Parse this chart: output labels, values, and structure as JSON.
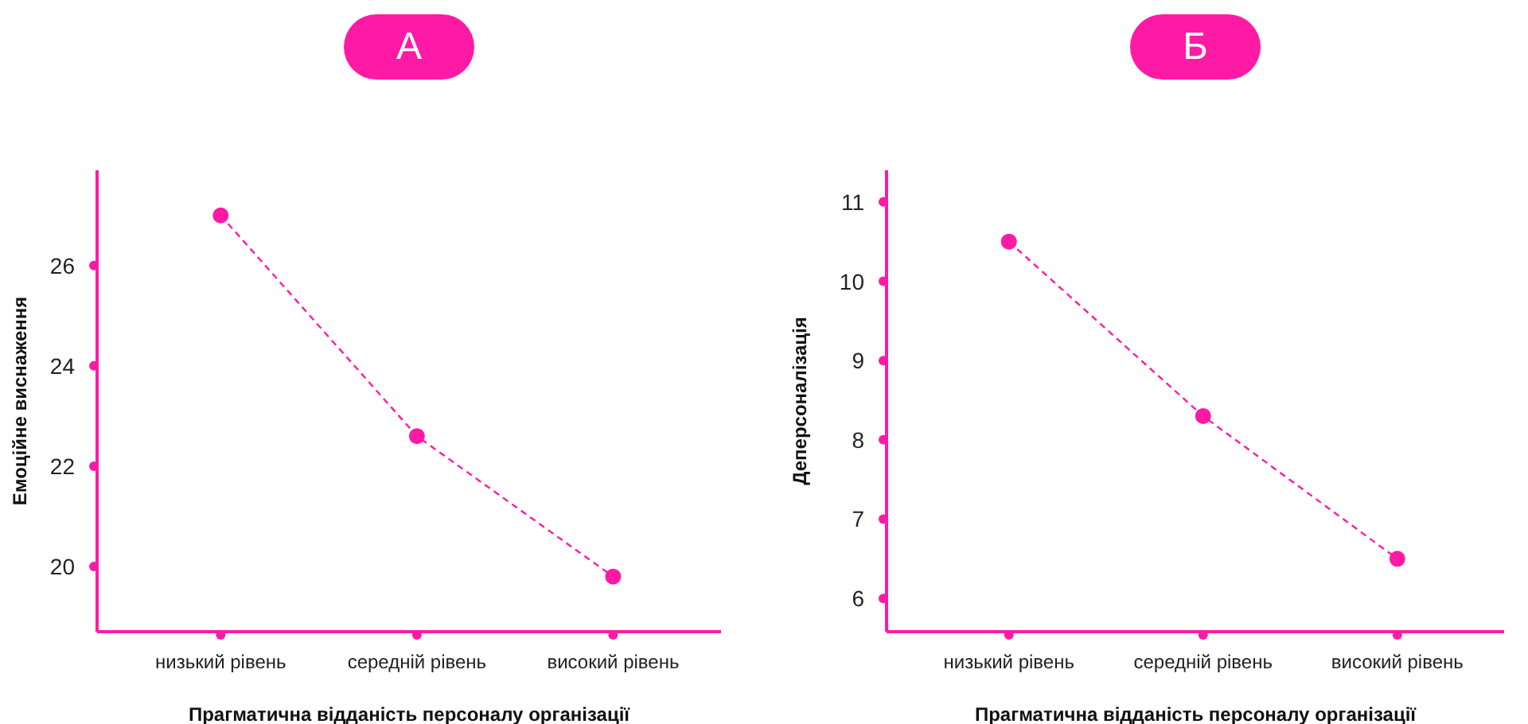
{
  "chart_data": [
    {
      "type": "line",
      "title": "А",
      "xlabel": "Прагматична відданість персоналу організації",
      "ylabel": "Емоційне виснаження",
      "categories": [
        "низький рівень",
        "середній рівень",
        "високий рівень"
      ],
      "series": [
        {
          "color": "#ff1aa6",
          "values": [
            27.0,
            22.6,
            19.8
          ]
        }
      ],
      "ylim": [
        18.7,
        27.9
      ],
      "yticks": [
        20,
        22,
        24,
        26
      ],
      "line_style": "dashed",
      "marker": "circle"
    },
    {
      "type": "line",
      "title": "Б",
      "xlabel": "Прагматична відданість персоналу організації",
      "ylabel": "Деперсоналізація",
      "categories": [
        "низький рівень",
        "середній рівень",
        "високий рівень"
      ],
      "series": [
        {
          "color": "#ff1aa6",
          "values": [
            10.5,
            8.3,
            6.5
          ]
        }
      ],
      "ylim": [
        5.58,
        11.4
      ],
      "yticks": [
        6,
        7,
        8,
        9,
        10,
        11
      ],
      "line_style": "dashed",
      "marker": "circle"
    }
  ]
}
